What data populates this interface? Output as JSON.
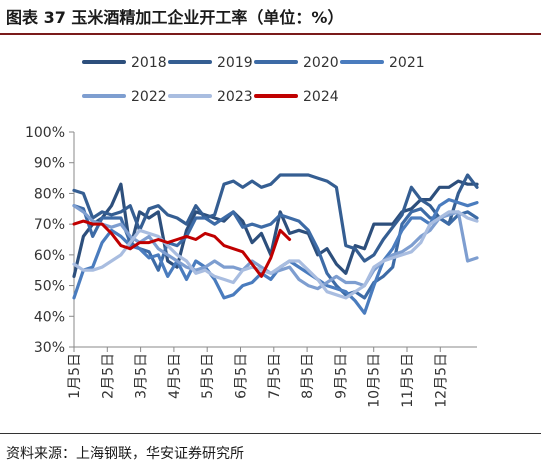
{
  "header": {
    "title": "图表 37  玉米酒精加工企业开工率（单位：%）"
  },
  "footer": {
    "source": "资料来源：上海钢联，华安证券研究所"
  },
  "chart_data": {
    "type": "line",
    "x_labels": [
      "1月5日",
      "2月5日",
      "3月5日",
      "4月5日",
      "5月5日",
      "6月5日",
      "7月5日",
      "8月5日",
      "9月5日",
      "10月5日",
      "11月5日",
      "12月5日"
    ],
    "y_ticks": [
      "30%",
      "40%",
      "50%",
      "60%",
      "70%",
      "80%",
      "90%",
      "100%"
    ],
    "ylim": [
      30,
      100
    ],
    "grid": false,
    "legend_position": "top",
    "series": [
      {
        "name": "2018",
        "color": "#2d4f7c",
        "values": [
          53,
          66,
          70,
          72,
          76,
          83,
          62,
          74,
          72,
          74,
          58,
          56,
          68,
          74,
          73,
          72,
          71,
          74,
          71,
          64,
          67,
          60,
          74,
          67,
          68,
          67,
          60,
          62,
          57,
          54,
          63,
          62,
          70,
          70,
          70,
          74,
          75,
          78,
          78,
          82,
          82,
          84,
          83,
          83
        ]
      },
      {
        "name": "2019",
        "color": "#355e92",
        "values": [
          81,
          80,
          72,
          74,
          73,
          74,
          76,
          68,
          75,
          76,
          73,
          72,
          70,
          76,
          72,
          73,
          83,
          84,
          82,
          84,
          82,
          83,
          86,
          86,
          86,
          86,
          85,
          84,
          82,
          63,
          62,
          58,
          60,
          65,
          69,
          73,
          82,
          78,
          76,
          72,
          70,
          80,
          86,
          82
        ]
      },
      {
        "name": "2020",
        "color": "#3d6ba6",
        "values": [
          76,
          75,
          66,
          72,
          72,
          72,
          64,
          62,
          61,
          55,
          64,
          63,
          66,
          72,
          72,
          70,
          72,
          74,
          69,
          70,
          69,
          70,
          73,
          72,
          71,
          68,
          62,
          54,
          50,
          47,
          48,
          46,
          51,
          53,
          56,
          70,
          74,
          75,
          72,
          72,
          70,
          73,
          74,
          72
        ]
      },
      {
        "name": "2021",
        "color": "#4a7cbe",
        "values": [
          46,
          55,
          56,
          64,
          68,
          66,
          63,
          62,
          59,
          60,
          53,
          58,
          52,
          58,
          56,
          52,
          46,
          47,
          50,
          51,
          54,
          52,
          56,
          58,
          56,
          54,
          52,
          50,
          49,
          48,
          45,
          41,
          50,
          58,
          62,
          68,
          72,
          72,
          70,
          76,
          78,
          77,
          76,
          77
        ]
      },
      {
        "name": "2022",
        "color": "#7e9ed0",
        "values": [
          76,
          74,
          71,
          70,
          69,
          70,
          66,
          64,
          66,
          62,
          60,
          58,
          56,
          55,
          56,
          58,
          56,
          56,
          55,
          58,
          56,
          54,
          55,
          56,
          52,
          50,
          49,
          51,
          53,
          51,
          51,
          50,
          55,
          58,
          60,
          61,
          63,
          66,
          68,
          72,
          73,
          74,
          58,
          59
        ]
      },
      {
        "name": "2023",
        "color": "#a9bde0",
        "values": [
          57,
          55,
          55,
          56,
          58,
          60,
          64,
          68,
          67,
          66,
          63,
          60,
          58,
          54,
          55,
          53,
          52,
          51,
          55,
          56,
          55,
          54,
          56,
          58,
          58,
          55,
          52,
          48,
          47,
          46,
          48,
          50,
          56,
          58,
          59,
          60,
          61,
          64,
          70,
          72,
          74,
          74,
          72,
          71
        ]
      },
      {
        "name": "2024",
        "color": "#c00000",
        "values": [
          70,
          71,
          70,
          70,
          67,
          63,
          62,
          64,
          64,
          65,
          64,
          65,
          66,
          65,
          67,
          66,
          63,
          62,
          61,
          57,
          53,
          59,
          68,
          65
        ]
      }
    ]
  }
}
